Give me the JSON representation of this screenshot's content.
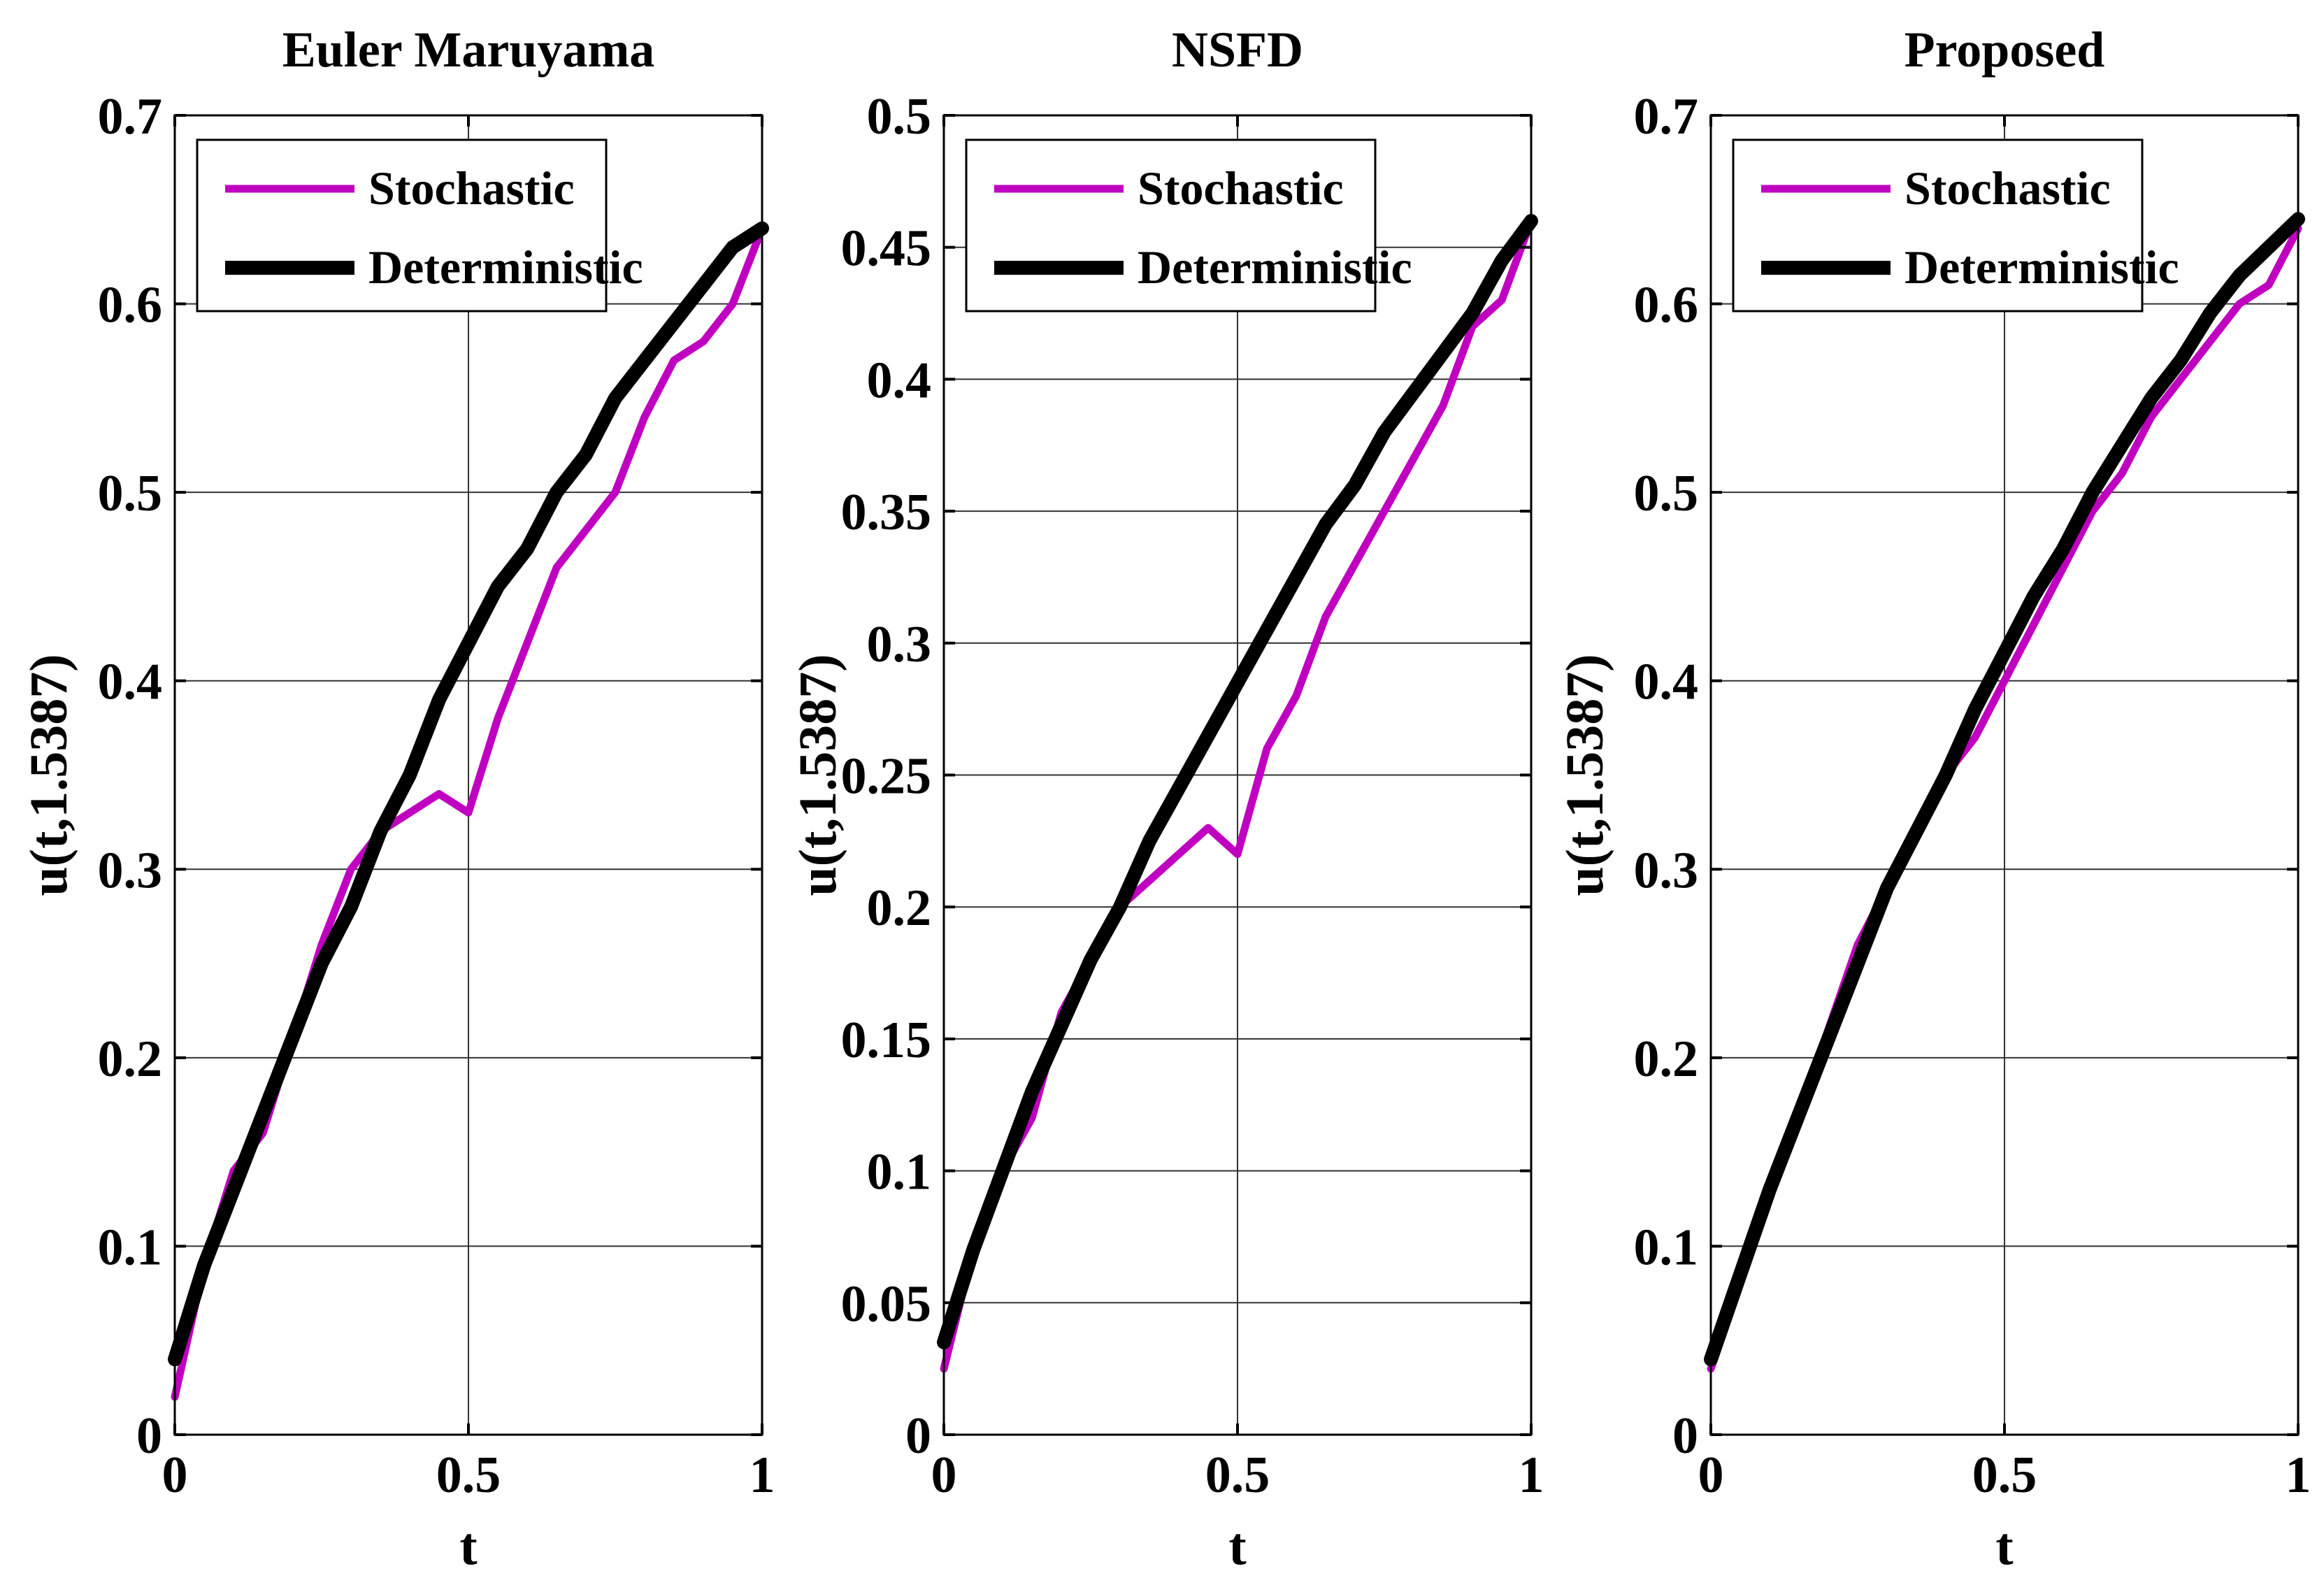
{
  "colors": {
    "stochastic": "#c000c0",
    "deterministic": "#000000",
    "grid": "#333333",
    "axes": "#000000"
  },
  "chart_data": [
    {
      "type": "line",
      "title": "Euler Maruyama",
      "xlabel": "t",
      "ylabel": "u(t,1.5387)",
      "xlim": [
        0,
        1
      ],
      "ylim": [
        0,
        0.7
      ],
      "xticks": [
        0,
        0.5,
        1
      ],
      "xtick_labels": [
        "0",
        "0.5",
        "1"
      ],
      "yticks": [
        0,
        0.1,
        0.2,
        0.3,
        0.4,
        0.5,
        0.6,
        0.7
      ],
      "ytick_labels": [
        "0",
        "0.1",
        "0.2",
        "0.3",
        "0.4",
        "0.5",
        "0.6",
        "0.7"
      ],
      "grid": true,
      "legend_position": "top-left",
      "series": [
        {
          "name": "Stochastic",
          "color": "#c000c0",
          "x": [
            0,
            0.05,
            0.1,
            0.15,
            0.2,
            0.25,
            0.3,
            0.35,
            0.4,
            0.45,
            0.5,
            0.55,
            0.6,
            0.65,
            0.7,
            0.75,
            0.8,
            0.85,
            0.9,
            0.95,
            1
          ],
          "y": [
            0.02,
            0.09,
            0.14,
            0.16,
            0.21,
            0.26,
            0.3,
            0.32,
            0.33,
            0.34,
            0.33,
            0.38,
            0.42,
            0.46,
            0.48,
            0.5,
            0.54,
            0.57,
            0.58,
            0.6,
            0.64
          ]
        },
        {
          "name": "Deterministic",
          "color": "#000000",
          "x": [
            0,
            0.05,
            0.1,
            0.15,
            0.2,
            0.25,
            0.3,
            0.35,
            0.4,
            0.45,
            0.5,
            0.55,
            0.6,
            0.65,
            0.7,
            0.75,
            0.8,
            0.85,
            0.9,
            0.95,
            1
          ],
          "y": [
            0.04,
            0.09,
            0.13,
            0.17,
            0.21,
            0.25,
            0.28,
            0.32,
            0.35,
            0.39,
            0.42,
            0.45,
            0.47,
            0.5,
            0.52,
            0.55,
            0.57,
            0.59,
            0.61,
            0.63,
            0.64
          ]
        }
      ]
    },
    {
      "type": "line",
      "title": "NSFD",
      "xlabel": "t",
      "ylabel": "u(t,1.5387)",
      "xlim": [
        0,
        1
      ],
      "ylim": [
        0,
        0.5
      ],
      "xticks": [
        0,
        0.5,
        1
      ],
      "xtick_labels": [
        "0",
        "0.5",
        "1"
      ],
      "yticks": [
        0,
        0.05,
        0.1,
        0.15,
        0.2,
        0.25,
        0.3,
        0.35,
        0.4,
        0.45,
        0.5
      ],
      "ytick_labels": [
        "0",
        "0.05",
        "0.1",
        "0.15",
        "0.2",
        "0.25",
        "0.3",
        "0.35",
        "0.4",
        "0.45",
        "0.5"
      ],
      "grid": true,
      "legend_position": "top-left",
      "series": [
        {
          "name": "Stochastic",
          "color": "#c000c0",
          "x": [
            0,
            0.05,
            0.1,
            0.15,
            0.2,
            0.25,
            0.3,
            0.35,
            0.4,
            0.45,
            0.5,
            0.55,
            0.6,
            0.65,
            0.7,
            0.75,
            0.8,
            0.85,
            0.9,
            0.95,
            1
          ],
          "y": [
            0.025,
            0.07,
            0.1,
            0.12,
            0.16,
            0.18,
            0.2,
            0.21,
            0.22,
            0.23,
            0.22,
            0.26,
            0.28,
            0.31,
            0.33,
            0.35,
            0.37,
            0.39,
            0.42,
            0.43,
            0.46
          ]
        },
        {
          "name": "Deterministic",
          "color": "#000000",
          "x": [
            0,
            0.05,
            0.1,
            0.15,
            0.2,
            0.25,
            0.3,
            0.35,
            0.4,
            0.45,
            0.5,
            0.55,
            0.6,
            0.65,
            0.7,
            0.75,
            0.8,
            0.85,
            0.9,
            0.95,
            1
          ],
          "y": [
            0.035,
            0.07,
            0.1,
            0.13,
            0.155,
            0.18,
            0.2,
            0.225,
            0.245,
            0.265,
            0.285,
            0.305,
            0.325,
            0.345,
            0.36,
            0.38,
            0.395,
            0.41,
            0.425,
            0.445,
            0.46
          ]
        }
      ]
    },
    {
      "type": "line",
      "title": "Proposed",
      "xlabel": "t",
      "ylabel": "u(t,1.5387)",
      "xlim": [
        0,
        1
      ],
      "ylim": [
        0,
        0.7
      ],
      "xticks": [
        0,
        0.5,
        1
      ],
      "xtick_labels": [
        "0",
        "0.5",
        "1"
      ],
      "yticks": [
        0,
        0.1,
        0.2,
        0.3,
        0.4,
        0.5,
        0.6,
        0.7
      ],
      "ytick_labels": [
        "0",
        "0.1",
        "0.2",
        "0.3",
        "0.4",
        "0.5",
        "0.6",
        "0.7"
      ],
      "grid": true,
      "legend_position": "top-left",
      "series": [
        {
          "name": "Stochastic",
          "color": "#c000c0",
          "x": [
            0,
            0.05,
            0.1,
            0.15,
            0.2,
            0.25,
            0.3,
            0.35,
            0.4,
            0.45,
            0.5,
            0.55,
            0.6,
            0.65,
            0.7,
            0.75,
            0.8,
            0.85,
            0.9,
            0.95,
            1
          ],
          "y": [
            0.035,
            0.08,
            0.125,
            0.17,
            0.215,
            0.26,
            0.29,
            0.32,
            0.35,
            0.37,
            0.4,
            0.43,
            0.46,
            0.49,
            0.51,
            0.54,
            0.56,
            0.58,
            0.6,
            0.61,
            0.64
          ]
        },
        {
          "name": "Deterministic",
          "color": "#000000",
          "x": [
            0,
            0.05,
            0.1,
            0.15,
            0.2,
            0.25,
            0.3,
            0.35,
            0.4,
            0.45,
            0.5,
            0.55,
            0.6,
            0.65,
            0.7,
            0.75,
            0.8,
            0.85,
            0.9,
            0.95,
            1
          ],
          "y": [
            0.04,
            0.085,
            0.13,
            0.17,
            0.21,
            0.25,
            0.29,
            0.32,
            0.35,
            0.385,
            0.415,
            0.445,
            0.47,
            0.5,
            0.525,
            0.55,
            0.57,
            0.595,
            0.615,
            0.63,
            0.645
          ]
        }
      ]
    }
  ]
}
